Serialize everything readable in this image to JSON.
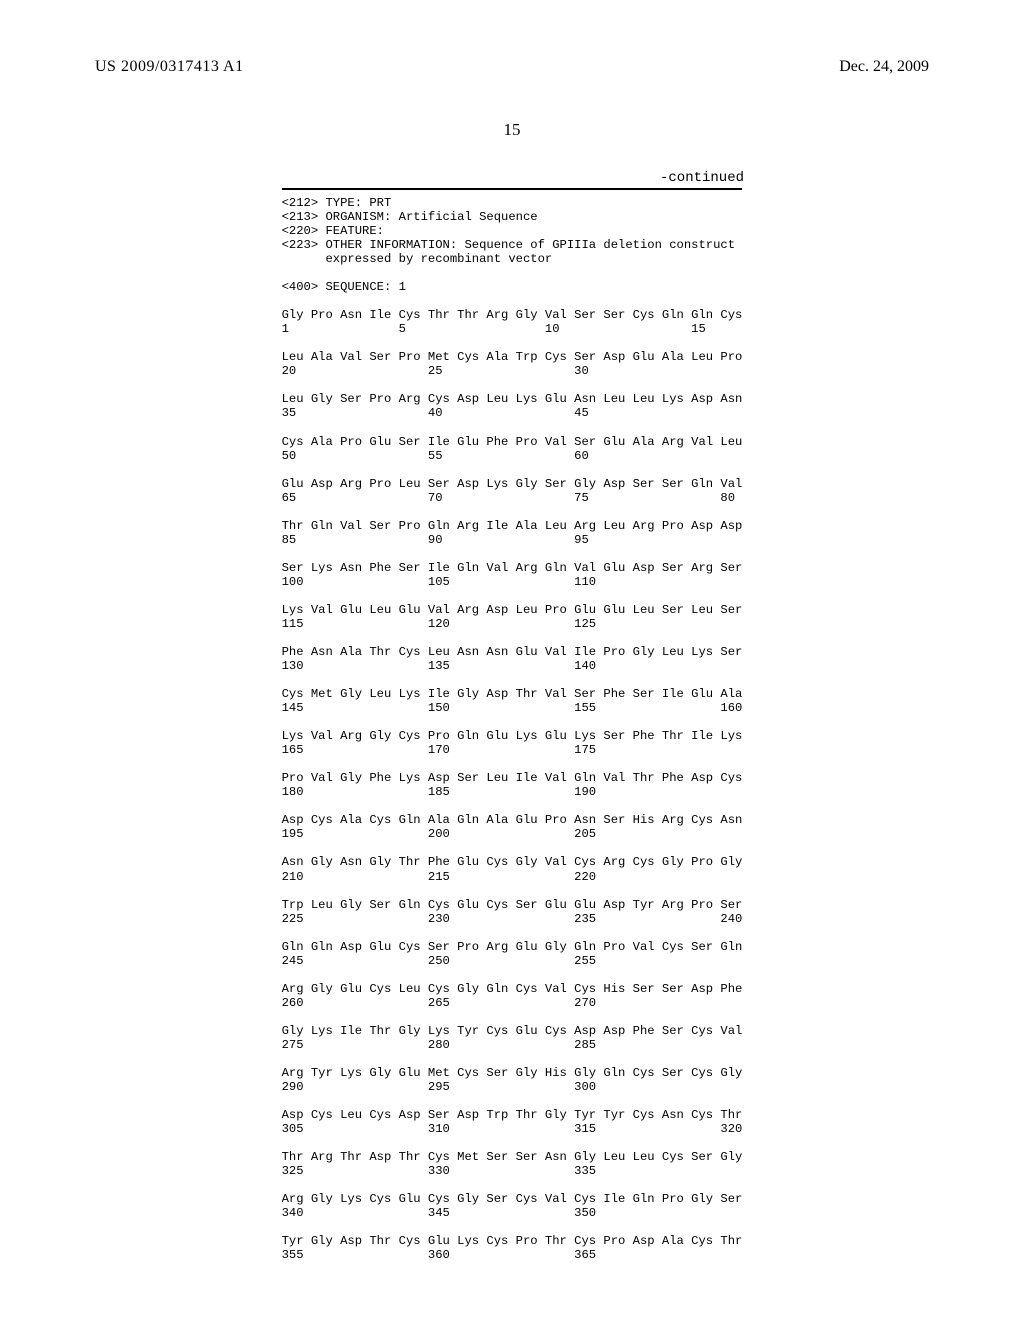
{
  "header": {
    "pubNumber": "US 2009/0317413 A1",
    "pubDate": "Dec. 24, 2009"
  },
  "pageNumber": "15",
  "continued": "-continued",
  "meta": [
    "<212> TYPE: PRT",
    "<213> ORGANISM: Artificial Sequence",
    "<220> FEATURE:",
    "<223> OTHER INFORMATION: Sequence of GPIIIa deletion construct",
    "      expressed by recombinant vector",
    "",
    "<400> SEQUENCE: 1"
  ],
  "sequence": [
    {
      "aa": "Gly Pro Asn Ile Cys Thr Thr Arg Gly Val Ser Ser Cys Gln Gln Cys",
      "nums": "1               5                   10                  15"
    },
    {
      "aa": "Leu Ala Val Ser Pro Met Cys Ala Trp Cys Ser Asp Glu Ala Leu Pro",
      "nums": "20                  25                  30"
    },
    {
      "aa": "Leu Gly Ser Pro Arg Cys Asp Leu Lys Glu Asn Leu Leu Lys Asp Asn",
      "nums": "35                  40                  45"
    },
    {
      "aa": "Cys Ala Pro Glu Ser Ile Glu Phe Pro Val Ser Glu Ala Arg Val Leu",
      "nums": "50                  55                  60"
    },
    {
      "aa": "Glu Asp Arg Pro Leu Ser Asp Lys Gly Ser Gly Asp Ser Ser Gln Val",
      "nums": "65                  70                  75                  80"
    },
    {
      "aa": "Thr Gln Val Ser Pro Gln Arg Ile Ala Leu Arg Leu Arg Pro Asp Asp",
      "nums": "85                  90                  95"
    },
    {
      "aa": "Ser Lys Asn Phe Ser Ile Gln Val Arg Gln Val Glu Asp Ser Arg Ser",
      "nums": "100                 105                 110"
    },
    {
      "aa": "Lys Val Glu Leu Glu Val Arg Asp Leu Pro Glu Glu Leu Ser Leu Ser",
      "nums": "115                 120                 125"
    },
    {
      "aa": "Phe Asn Ala Thr Cys Leu Asn Asn Glu Val Ile Pro Gly Leu Lys Ser",
      "nums": "130                 135                 140"
    },
    {
      "aa": "Cys Met Gly Leu Lys Ile Gly Asp Thr Val Ser Phe Ser Ile Glu Ala",
      "nums": "145                 150                 155                 160"
    },
    {
      "aa": "Lys Val Arg Gly Cys Pro Gln Glu Lys Glu Lys Ser Phe Thr Ile Lys",
      "nums": "165                 170                 175"
    },
    {
      "aa": "Pro Val Gly Phe Lys Asp Ser Leu Ile Val Gln Val Thr Phe Asp Cys",
      "nums": "180                 185                 190"
    },
    {
      "aa": "Asp Cys Ala Cys Gln Ala Gln Ala Glu Pro Asn Ser His Arg Cys Asn",
      "nums": "195                 200                 205"
    },
    {
      "aa": "Asn Gly Asn Gly Thr Phe Glu Cys Gly Val Cys Arg Cys Gly Pro Gly",
      "nums": "210                 215                 220"
    },
    {
      "aa": "Trp Leu Gly Ser Gln Cys Glu Cys Ser Glu Glu Asp Tyr Arg Pro Ser",
      "nums": "225                 230                 235                 240"
    },
    {
      "aa": "Gln Gln Asp Glu Cys Ser Pro Arg Glu Gly Gln Pro Val Cys Ser Gln",
      "nums": "245                 250                 255"
    },
    {
      "aa": "Arg Gly Glu Cys Leu Cys Gly Gln Cys Val Cys His Ser Ser Asp Phe",
      "nums": "260                 265                 270"
    },
    {
      "aa": "Gly Lys Ile Thr Gly Lys Tyr Cys Glu Cys Asp Asp Phe Ser Cys Val",
      "nums": "275                 280                 285"
    },
    {
      "aa": "Arg Tyr Lys Gly Glu Met Cys Ser Gly His Gly Gln Cys Ser Cys Gly",
      "nums": "290                 295                 300"
    },
    {
      "aa": "Asp Cys Leu Cys Asp Ser Asp Trp Thr Gly Tyr Tyr Cys Asn Cys Thr",
      "nums": "305                 310                 315                 320"
    },
    {
      "aa": "Thr Arg Thr Asp Thr Cys Met Ser Ser Asn Gly Leu Leu Cys Ser Gly",
      "nums": "325                 330                 335"
    },
    {
      "aa": "Arg Gly Lys Cys Glu Cys Gly Ser Cys Val Cys Ile Gln Pro Gly Ser",
      "nums": "340                 345                 350"
    },
    {
      "aa": "Tyr Gly Asp Thr Cys Glu Lys Cys Pro Thr Cys Pro Asp Ala Cys Thr",
      "nums": "355                 360                 365"
    }
  ]
}
